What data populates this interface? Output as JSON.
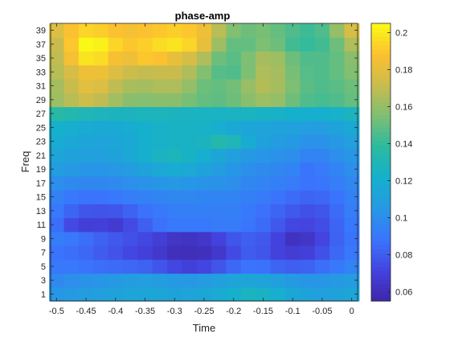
{
  "chart_data": {
    "type": "heatmap",
    "title": "phase-amp",
    "xlabel": "Time",
    "ylabel": "Freq",
    "x": [
      -0.5,
      -0.475,
      -0.45,
      -0.425,
      -0.4,
      -0.375,
      -0.35,
      -0.325,
      -0.3,
      -0.275,
      -0.25,
      -0.225,
      -0.2,
      -0.175,
      -0.15,
      -0.125,
      -0.1,
      -0.075,
      -0.05,
      -0.025,
      0
    ],
    "y": [
      1,
      3,
      5,
      7,
      9,
      11,
      13,
      15,
      17,
      19,
      21,
      23,
      25,
      27,
      29,
      31,
      33,
      35,
      37,
      39
    ],
    "xlim": [
      -0.51,
      0.01
    ],
    "ylim": [
      0,
      40
    ],
    "xticks": [
      -0.5,
      -0.45,
      -0.4,
      -0.35,
      -0.3,
      -0.25,
      -0.2,
      -0.15,
      -0.1,
      -0.05,
      0
    ],
    "xtick_labels": [
      "-0.5",
      "-0.45",
      "-0.4",
      "-0.35",
      "-0.3",
      "-0.25",
      "-0.2",
      "-0.15",
      "-0.1",
      "-0.05",
      "0"
    ],
    "yticks": [
      1,
      3,
      5,
      7,
      9,
      11,
      13,
      15,
      17,
      19,
      21,
      23,
      25,
      27,
      29,
      31,
      33,
      35,
      37,
      39
    ],
    "ytick_labels": [
      "1",
      "3",
      "5",
      "7",
      "9",
      "11",
      "13",
      "15",
      "17",
      "19",
      "21",
      "23",
      "25",
      "27",
      "29",
      "31",
      "33",
      "35",
      "37",
      "39"
    ],
    "z": [
      [
        0.104,
        0.106,
        0.108,
        0.11,
        0.112,
        0.113,
        0.114,
        0.114,
        0.112,
        0.113,
        0.115,
        0.118,
        0.121,
        0.126,
        0.125,
        0.12,
        0.115,
        0.112,
        0.11,
        0.112,
        0.114
      ],
      [
        0.098,
        0.1,
        0.102,
        0.104,
        0.106,
        0.108,
        0.109,
        0.108,
        0.106,
        0.105,
        0.107,
        0.11,
        0.113,
        0.114,
        0.113,
        0.11,
        0.106,
        0.104,
        0.104,
        0.106,
        0.108
      ],
      [
        0.09,
        0.09,
        0.088,
        0.086,
        0.085,
        0.084,
        0.082,
        0.078,
        0.073,
        0.07,
        0.072,
        0.078,
        0.084,
        0.088,
        0.087,
        0.083,
        0.081,
        0.082,
        0.086,
        0.09,
        0.095
      ],
      [
        0.088,
        0.086,
        0.084,
        0.08,
        0.077,
        0.073,
        0.07,
        0.066,
        0.061,
        0.06,
        0.061,
        0.066,
        0.074,
        0.08,
        0.078,
        0.071,
        0.068,
        0.07,
        0.076,
        0.084,
        0.09
      ],
      [
        0.092,
        0.09,
        0.086,
        0.082,
        0.079,
        0.076,
        0.073,
        0.069,
        0.064,
        0.063,
        0.065,
        0.071,
        0.078,
        0.081,
        0.079,
        0.071,
        0.062,
        0.064,
        0.072,
        0.082,
        0.088
      ],
      [
        0.086,
        0.074,
        0.069,
        0.07,
        0.067,
        0.074,
        0.081,
        0.087,
        0.09,
        0.09,
        0.09,
        0.091,
        0.091,
        0.089,
        0.085,
        0.079,
        0.073,
        0.072,
        0.075,
        0.083,
        0.09
      ],
      [
        0.09,
        0.083,
        0.078,
        0.077,
        0.078,
        0.082,
        0.087,
        0.09,
        0.092,
        0.093,
        0.093,
        0.093,
        0.093,
        0.09,
        0.087,
        0.083,
        0.079,
        0.076,
        0.078,
        0.085,
        0.092
      ],
      [
        0.094,
        0.09,
        0.088,
        0.088,
        0.09,
        0.092,
        0.094,
        0.096,
        0.097,
        0.097,
        0.096,
        0.096,
        0.095,
        0.093,
        0.091,
        0.088,
        0.085,
        0.083,
        0.084,
        0.088,
        0.094
      ],
      [
        0.1,
        0.098,
        0.097,
        0.097,
        0.098,
        0.1,
        0.102,
        0.104,
        0.105,
        0.104,
        0.103,
        0.102,
        0.1,
        0.097,
        0.095,
        0.093,
        0.091,
        0.088,
        0.089,
        0.092,
        0.097
      ],
      [
        0.108,
        0.106,
        0.104,
        0.104,
        0.105,
        0.108,
        0.112,
        0.116,
        0.118,
        0.116,
        0.112,
        0.108,
        0.104,
        0.101,
        0.099,
        0.097,
        0.095,
        0.088,
        0.091,
        0.095,
        0.1
      ],
      [
        0.114,
        0.112,
        0.11,
        0.11,
        0.112,
        0.116,
        0.121,
        0.126,
        0.128,
        0.125,
        0.12,
        0.115,
        0.11,
        0.106,
        0.104,
        0.102,
        0.1,
        0.095,
        0.096,
        0.1,
        0.104
      ],
      [
        0.118,
        0.116,
        0.114,
        0.113,
        0.114,
        0.117,
        0.121,
        0.124,
        0.125,
        0.125,
        0.127,
        0.134,
        0.13,
        0.118,
        0.112,
        0.108,
        0.106,
        0.102,
        0.102,
        0.106,
        0.11
      ],
      [
        0.122,
        0.12,
        0.118,
        0.117,
        0.117,
        0.119,
        0.122,
        0.124,
        0.125,
        0.125,
        0.124,
        0.12,
        0.116,
        0.114,
        0.113,
        0.112,
        0.111,
        0.109,
        0.109,
        0.112,
        0.116
      ],
      [
        0.136,
        0.133,
        0.13,
        0.128,
        0.127,
        0.127,
        0.128,
        0.128,
        0.127,
        0.126,
        0.126,
        0.126,
        0.126,
        0.126,
        0.125,
        0.124,
        0.122,
        0.121,
        0.121,
        0.123,
        0.127
      ],
      [
        0.162,
        0.168,
        0.174,
        0.17,
        0.163,
        0.158,
        0.157,
        0.158,
        0.158,
        0.154,
        0.15,
        0.149,
        0.152,
        0.158,
        0.162,
        0.16,
        0.152,
        0.146,
        0.144,
        0.146,
        0.15
      ],
      [
        0.164,
        0.172,
        0.18,
        0.178,
        0.17,
        0.165,
        0.164,
        0.166,
        0.166,
        0.16,
        0.152,
        0.15,
        0.153,
        0.161,
        0.167,
        0.164,
        0.155,
        0.148,
        0.146,
        0.148,
        0.152
      ],
      [
        0.168,
        0.176,
        0.184,
        0.184,
        0.178,
        0.173,
        0.171,
        0.172,
        0.172,
        0.166,
        0.156,
        0.147,
        0.146,
        0.155,
        0.166,
        0.164,
        0.154,
        0.147,
        0.146,
        0.15,
        0.156
      ],
      [
        0.17,
        0.186,
        0.198,
        0.196,
        0.186,
        0.184,
        0.19,
        0.188,
        0.182,
        0.176,
        0.166,
        0.152,
        0.148,
        0.155,
        0.164,
        0.162,
        0.152,
        0.146,
        0.146,
        0.15,
        0.158
      ],
      [
        0.172,
        0.19,
        0.204,
        0.202,
        0.194,
        0.19,
        0.192,
        0.196,
        0.198,
        0.194,
        0.182,
        0.162,
        0.15,
        0.15,
        0.155,
        0.152,
        0.143,
        0.14,
        0.143,
        0.152,
        0.166
      ],
      [
        0.178,
        0.188,
        0.194,
        0.192,
        0.188,
        0.186,
        0.188,
        0.19,
        0.192,
        0.19,
        0.184,
        0.168,
        0.156,
        0.152,
        0.154,
        0.15,
        0.146,
        0.142,
        0.146,
        0.16,
        0.176
      ]
    ],
    "colorbar": {
      "colormap": "parula",
      "clim": [
        0.055,
        0.205
      ],
      "ticks": [
        0.06,
        0.08,
        0.1,
        0.12,
        0.14,
        0.16,
        0.18,
        0.2
      ],
      "tick_labels": [
        "0.06",
        "0.08",
        "0.1",
        "0.12",
        "0.14",
        "0.16",
        "0.18",
        "0.2"
      ]
    },
    "grid": false,
    "colormap_stops": [
      "#3e26a8",
      "#4443df",
      "#3a75fd",
      "#2798e4",
      "#15b0cd",
      "#2bbaa0",
      "#7dbf73",
      "#c8bc4e",
      "#fcc130",
      "#f9fb15"
    ]
  }
}
